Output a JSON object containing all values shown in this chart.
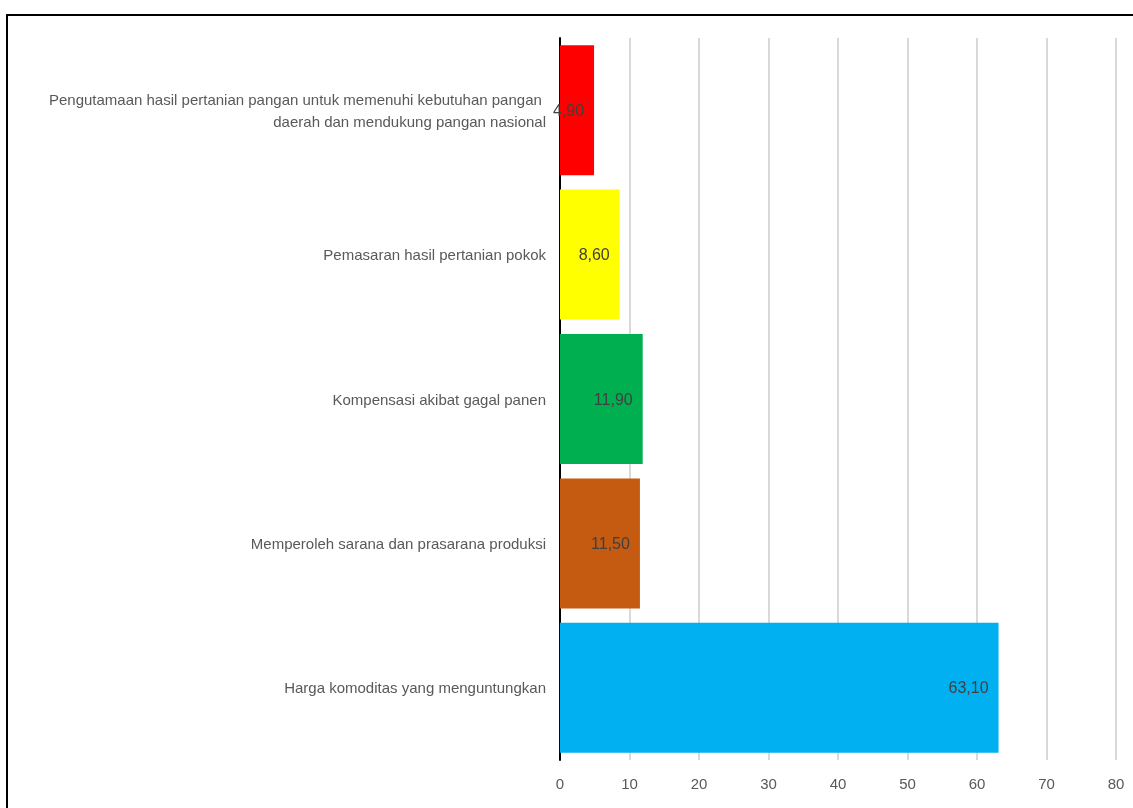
{
  "chart_data": {
    "type": "bar",
    "orientation": "horizontal",
    "categories": [
      "Pengutamaan hasil pertanian pangan untuk memenuhi kebutuhan pangan daerah dan mendukung pangan nasional",
      "Pemasaran hasil pertanian pokok",
      "Kompensasi akibat gagal panen",
      "Memperoleh sarana dan prasarana produksi",
      "Harga komoditas yang menguntungkan"
    ],
    "values": [
      4.9,
      8.6,
      11.9,
      11.5,
      63.1
    ],
    "colors": [
      "#ff0000",
      "#ffff00",
      "#00b050",
      "#c55a11",
      "#00b0f0"
    ],
    "value_labels": [
      "4,90",
      "8,60",
      "11,90",
      "11,50",
      "63,10"
    ],
    "xlim": [
      0,
      80
    ],
    "xticks": [
      0,
      10,
      20,
      30,
      40,
      50,
      60,
      70,
      80
    ],
    "grid": "x"
  }
}
